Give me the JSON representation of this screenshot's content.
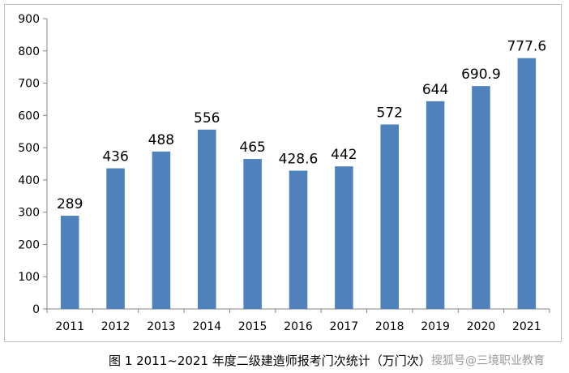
{
  "caption": "图 1  2011~2021 年度二级建造师报考门次统计（万门次）",
  "watermark": "搜狐号@三境职业教育",
  "colors": {
    "bar": "#4f81bd",
    "axis": "#868686",
    "grid": "#d9d9d9"
  },
  "chart_data": {
    "type": "bar",
    "categories": [
      "2011",
      "2012",
      "2013",
      "2014",
      "2015",
      "2016",
      "2017",
      "2018",
      "2019",
      "2020",
      "2021"
    ],
    "values": [
      289,
      436,
      488,
      556,
      465,
      428.6,
      442,
      572,
      644,
      690.9,
      777.6
    ],
    "data_labels": [
      "289",
      "436",
      "488",
      "556",
      "465",
      "428.6",
      "442",
      "572",
      "644",
      "690.9",
      "777.6"
    ],
    "yticks": [
      "0",
      "100",
      "200",
      "300",
      "400",
      "500",
      "600",
      "700",
      "800",
      "900"
    ],
    "ylim": [
      0,
      900
    ],
    "grid": false,
    "legend": "none"
  }
}
